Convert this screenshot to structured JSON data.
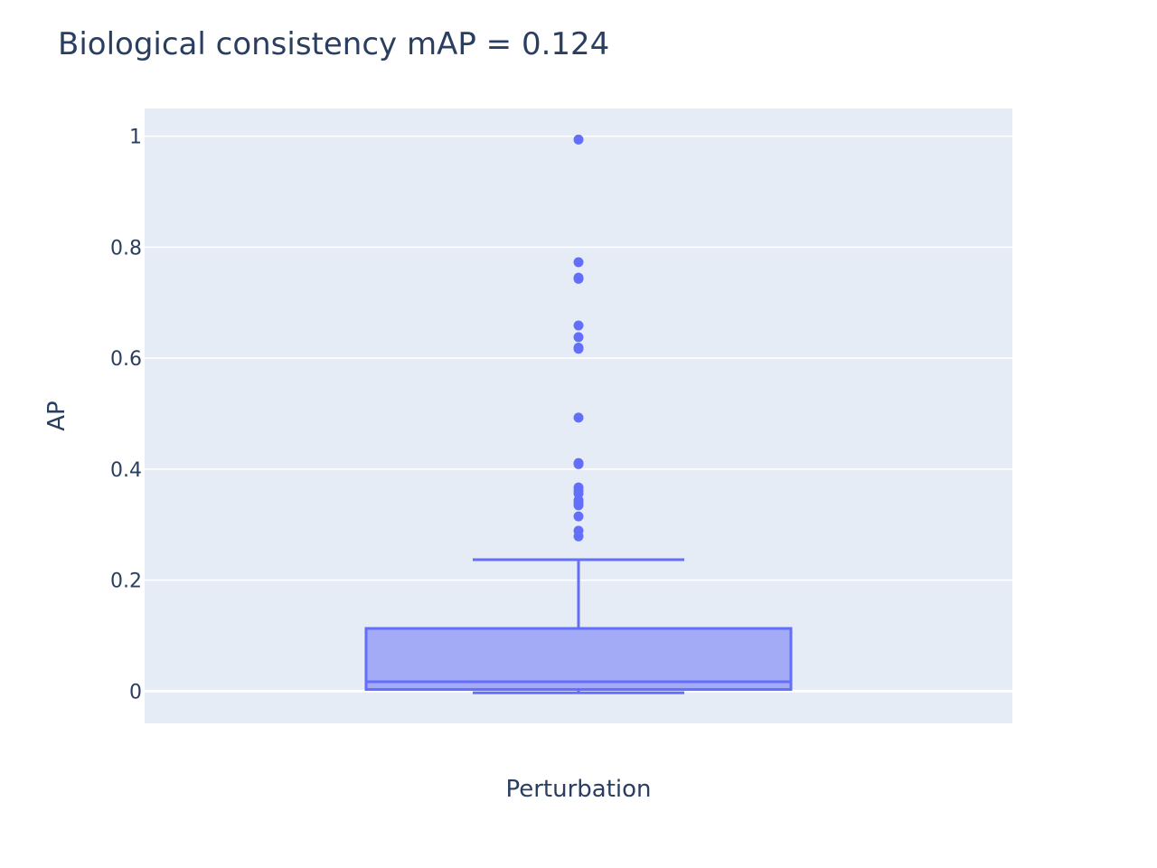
{
  "chart_data": {
    "type": "box",
    "title": "Biological consistency mAP =  0.124",
    "xlabel": "",
    "ylabel": "AP",
    "categories": [
      "Perturbation"
    ],
    "ylim": [
      -0.058,
      1.05
    ],
    "yticks": [
      0,
      0.2,
      0.4,
      0.6,
      0.8,
      1
    ],
    "ytick_labels": [
      "0",
      "0.2",
      "0.4",
      "0.6",
      "0.8",
      "1"
    ],
    "grid": true,
    "colors": {
      "box_line": "#636efa",
      "box_fill": "#a3aaf6",
      "plot_bg": "#e5ecf6",
      "grid": "#ffffff",
      "text": "#2a3f5f"
    },
    "box": {
      "lower_fence": -0.003,
      "q1": 0.003,
      "median": 0.017,
      "q3": 0.113,
      "upper_fence": 0.237
    },
    "outliers": [
      0.994,
      0.773,
      0.745,
      0.743,
      0.659,
      0.638,
      0.619,
      0.617,
      0.493,
      0.411,
      0.409,
      0.367,
      0.362,
      0.356,
      0.344,
      0.339,
      0.335,
      0.315,
      0.289,
      0.279
    ]
  }
}
